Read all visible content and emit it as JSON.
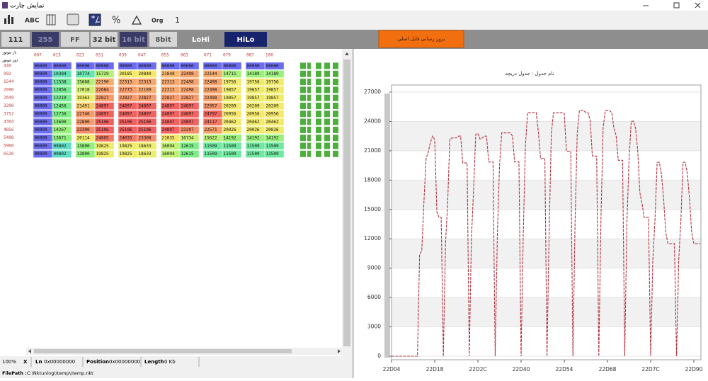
{
  "window": {
    "title": "نمایش چارت"
  },
  "toolbar": {
    "abc": "ABC",
    "percent": "%",
    "org": "Org",
    "one": "1"
  },
  "buttons": [
    "111",
    "255",
    "FF",
    "32 bit",
    "16 bit",
    "8bit",
    "LoHi",
    "HiLo"
  ],
  "update_button": "بروز رسانی فایل اصلی",
  "table": {
    "corner": [
      "بار موتور",
      "دور موتور"
    ],
    "columns": [
      "007",
      "015",
      "023",
      "031",
      "039",
      "047",
      "055",
      "063",
      "071",
      "079",
      "087",
      "100"
    ],
    "rows": [
      {
        "label": "440",
        "cells": [
          "00000",
          "00000",
          "00000",
          "00000",
          "00000",
          "00000",
          "00000",
          "00000",
          "00000",
          "00000",
          "00000",
          "00000"
        ]
      },
      {
        "label": "992",
        "cells": [
          "00000",
          "10384",
          "10774",
          "15729",
          "20185",
          "20840",
          "21848",
          "22498",
          "22144",
          "14711",
          "14189",
          "14189"
        ]
      },
      {
        "label": "1544",
        "cells": [
          "00000",
          "11538",
          "15668",
          "22190",
          "22313",
          "22313",
          "22313",
          "22498",
          "22498",
          "19756",
          "19756",
          "19756"
        ]
      },
      {
        "label": "2096",
        "cells": [
          "00000",
          "12056",
          "17018",
          "22684",
          "22773",
          "22189",
          "22313",
          "22498",
          "22498",
          "19857",
          "19857",
          "19857"
        ]
      },
      {
        "label": "2648",
        "cells": [
          "00000",
          "12219",
          "19363",
          "22827",
          "22827",
          "22827",
          "22827",
          "22827",
          "22498",
          "19857",
          "19857",
          "19857"
        ]
      },
      {
        "label": "3200",
        "cells": [
          "00000",
          "12456",
          "21491",
          "24897",
          "24897",
          "24897",
          "24897",
          "24897",
          "22957",
          "20209",
          "20209",
          "20209"
        ]
      },
      {
        "label": "3752",
        "cells": [
          "00000",
          "12736",
          "22746",
          "24897",
          "24897",
          "24897",
          "24897",
          "24897",
          "24797",
          "20956",
          "20956",
          "20956"
        ]
      },
      {
        "label": "4304",
        "cells": [
          "00000",
          "13690",
          "22800",
          "25106",
          "25106",
          "25106",
          "24897",
          "24897",
          "24117",
          "20462",
          "20462",
          "20462"
        ]
      },
      {
        "label": "4856",
        "cells": [
          "00000",
          "14267",
          "23390",
          "25106",
          "25106",
          "25106",
          "24897",
          "23297",
          "22571",
          "20026",
          "20026",
          "20026"
        ]
      },
      {
        "label": "5408",
        "cells": [
          "00000",
          "13671",
          "20114",
          "24005",
          "24035",
          "23308",
          "21035",
          "16734",
          "15622",
          "14192",
          "14192",
          "14192"
        ]
      },
      {
        "label": "5960",
        "cells": [
          "00000",
          "09802",
          "13890",
          "19825",
          "19825",
          "18633",
          "16094",
          "12615",
          "11509",
          "11509",
          "11509",
          "11509"
        ]
      },
      {
        "label": "6520",
        "cells": [
          "00000",
          "09802",
          "13890",
          "19825",
          "19825",
          "18633",
          "16094",
          "12615",
          "11509",
          "11509",
          "11509",
          "11509"
        ]
      }
    ]
  },
  "status": {
    "zoom": "100%",
    "x": "X",
    "ln_label": "Ln",
    "ln": "0x00000000",
    "position_label": "Position",
    "position": "0x00000000",
    "length_label": "Length",
    "length": "0 Kb"
  },
  "file_path": {
    "label": "FilePath :",
    "value": "C:\\Nktuning\\\\temp\\\\temp.nkt"
  },
  "chart_data": {
    "type": "line",
    "title": "نام جدول : جدول دریچه",
    "categories": [
      "22D04",
      null,
      null,
      null,
      null,
      null,
      null,
      null,
      null,
      null,
      null,
      null,
      null,
      null,
      null,
      null,
      null,
      null,
      null,
      null,
      "22D18",
      null,
      null,
      null,
      null,
      null,
      null,
      null,
      null,
      null,
      null,
      null,
      null,
      null,
      null,
      null,
      null,
      null,
      null,
      null,
      "22D2C",
      null,
      null,
      null,
      null,
      null,
      null,
      null,
      null,
      null,
      null,
      null,
      null,
      null,
      null,
      null,
      null,
      null,
      null,
      null,
      "22D40",
      null,
      null,
      null,
      null,
      null,
      null,
      null,
      null,
      null,
      null,
      null,
      null,
      null,
      null,
      null,
      null,
      null,
      null,
      null,
      "22D54",
      null,
      null,
      null,
      null,
      null,
      null,
      null,
      null,
      null,
      null,
      null,
      null,
      null,
      null,
      null,
      null,
      null,
      null,
      null,
      "22D68",
      null,
      null,
      null,
      null,
      null,
      null,
      null,
      null,
      null,
      null,
      null,
      null,
      null,
      null,
      null,
      null,
      null,
      null,
      null,
      "22D7C",
      null,
      null,
      null,
      null,
      null,
      null,
      null,
      null,
      null,
      null,
      null,
      null,
      null,
      null,
      null,
      null,
      null,
      null,
      null,
      "22D90",
      null,
      null,
      null
    ],
    "values": [
      0,
      0,
      0,
      0,
      0,
      0,
      0,
      0,
      0,
      0,
      0,
      0,
      0,
      10384,
      10774,
      15729,
      20185,
      20840,
      21848,
      22498,
      22144,
      14711,
      14189,
      14189,
      0,
      11538,
      15668,
      22190,
      22313,
      22313,
      22313,
      22498,
      22498,
      19756,
      19756,
      19756,
      0,
      12056,
      17018,
      22684,
      22773,
      22189,
      22313,
      22498,
      22498,
      19857,
      19857,
      19857,
      0,
      12219,
      19363,
      22827,
      22827,
      22827,
      22827,
      22827,
      22498,
      19857,
      19857,
      19857,
      0,
      12456,
      21491,
      24897,
      24897,
      24897,
      24897,
      24897,
      22957,
      20209,
      20209,
      20209,
      0,
      12736,
      22746,
      24897,
      24897,
      24897,
      24897,
      24897,
      24797,
      20956,
      20956,
      20956,
      0,
      13690,
      22800,
      25106,
      25106,
      25106,
      24897,
      24897,
      24117,
      20462,
      20462,
      20462,
      0,
      14267,
      23390,
      25106,
      25106,
      25106,
      24897,
      23297,
      22571,
      20026,
      20026,
      20026,
      0,
      13671,
      20114,
      24005,
      24035,
      23308,
      21035,
      16734,
      15622,
      14192,
      14192,
      14192,
      0,
      9802,
      13890,
      19825,
      19825,
      18633,
      16094,
      12615,
      11509,
      11509,
      11509,
      11509,
      0,
      9802,
      13890,
      19825,
      19825,
      18633,
      16094,
      12615,
      11509,
      11509,
      11509,
      11509
    ],
    "color": "#b2323f",
    "ylim": [
      0,
      27000
    ],
    "yticks": [
      0,
      3000,
      6000,
      9000,
      12000,
      15000,
      18000,
      21000,
      24000,
      27000
    ],
    "grid": true
  }
}
